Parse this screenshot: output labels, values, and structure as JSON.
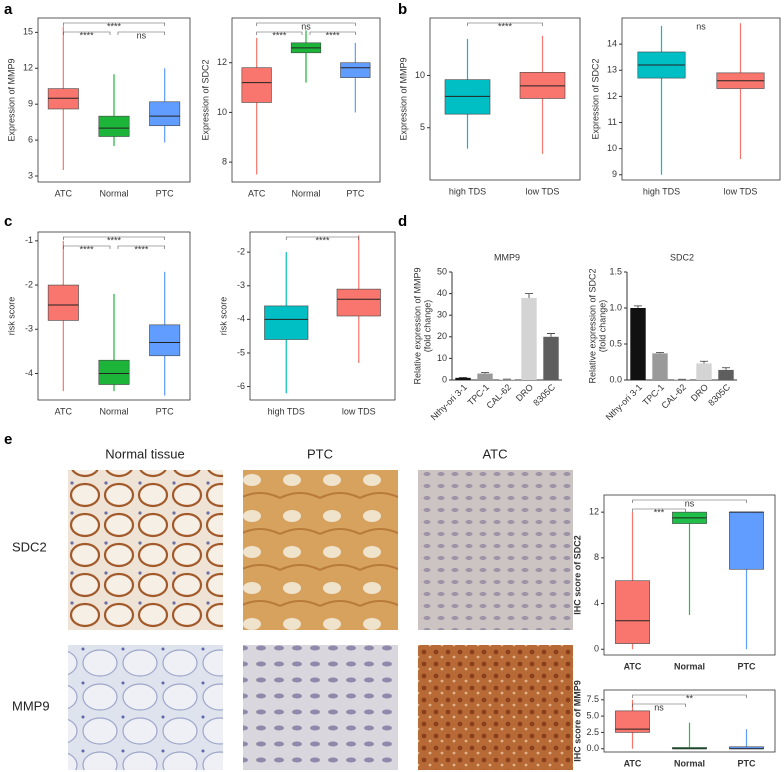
{
  "panel_labels": [
    "a",
    "b",
    "c",
    "d",
    "e"
  ],
  "ihc": {
    "columns": [
      "Normal tissue",
      "PTC",
      "ATC"
    ],
    "rows": [
      "SDC2",
      "MMP9"
    ]
  },
  "chart_data": [
    {
      "type": "box",
      "ylabel": "Expression of MMP9",
      "categories": [
        "ATC",
        "Normal",
        "PTC"
      ],
      "colors": [
        "#f8766d",
        "#1db43a",
        "#619cff"
      ],
      "ylim": [
        2.5,
        16.2
      ],
      "yticks": [
        3,
        6,
        9,
        12,
        15
      ],
      "boxes": [
        {
          "whisker_low": 3.5,
          "q1": 8.6,
          "median": 9.5,
          "q3": 10.3,
          "whisker_high": 15.5
        },
        {
          "whisker_low": 5.5,
          "q1": 6.3,
          "median": 7.0,
          "q3": 8.0,
          "whisker_high": 11.5
        },
        {
          "whisker_low": 5.8,
          "q1": 7.2,
          "median": 8.0,
          "q3": 9.2,
          "whisker_high": 12.0
        }
      ],
      "significance": [
        "****",
        "****",
        "ns"
      ]
    },
    {
      "type": "box",
      "ylabel": "Expression of SDC2",
      "categories": [
        "ATC",
        "Normal",
        "PTC"
      ],
      "colors": [
        "#f8766d",
        "#1db43a",
        "#619cff"
      ],
      "ylim": [
        7.2,
        13.8
      ],
      "yticks": [
        8,
        10,
        12
      ],
      "boxes": [
        {
          "whisker_low": 7.5,
          "q1": 10.4,
          "median": 11.2,
          "q3": 11.8,
          "whisker_high": 13.0
        },
        {
          "whisker_low": 11.2,
          "q1": 12.4,
          "median": 12.6,
          "q3": 12.8,
          "whisker_high": 13.3
        },
        {
          "whisker_low": 10.0,
          "q1": 11.4,
          "median": 11.8,
          "q3": 12.0,
          "whisker_high": 12.8
        }
      ],
      "significance": [
        "ns",
        "****",
        "****"
      ]
    },
    {
      "type": "box",
      "ylabel": "Expression of MMP9",
      "categories": [
        "high TDS",
        "low TDS"
      ],
      "colors": [
        "#00bfc4",
        "#f8766d"
      ],
      "ylim": [
        0,
        15.5
      ],
      "yticks": [
        5,
        10
      ],
      "boxes": [
        {
          "whisker_low": 3.0,
          "q1": 6.3,
          "median": 8.0,
          "q3": 9.6,
          "whisker_high": 13.5
        },
        {
          "whisker_low": 2.5,
          "q1": 7.8,
          "median": 9.0,
          "q3": 10.3,
          "whisker_high": 13.8
        }
      ],
      "significance": [
        "****"
      ]
    },
    {
      "type": "box",
      "ylabel": "Expression of SDC2",
      "categories": [
        "high TDS",
        "low TDS"
      ],
      "colors": [
        "#00bfc4",
        "#f8766d"
      ],
      "ylim": [
        8.8,
        15.0
      ],
      "yticks": [
        9,
        10,
        11,
        12,
        13,
        14
      ],
      "boxes": [
        {
          "whisker_low": 9.0,
          "q1": 12.7,
          "median": 13.2,
          "q3": 13.7,
          "whisker_high": 14.7
        },
        {
          "whisker_low": 9.6,
          "q1": 12.3,
          "median": 12.6,
          "q3": 12.9,
          "whisker_high": 14.8
        }
      ],
      "significance": [
        "ns"
      ]
    },
    {
      "type": "box",
      "ylabel": "risk score",
      "categories": [
        "ATC",
        "Normal",
        "PTC"
      ],
      "colors": [
        "#f8766d",
        "#1db43a",
        "#619cff"
      ],
      "ylim": [
        -4.6,
        -0.8
      ],
      "yticks": [
        -4,
        -3,
        -2,
        -1
      ],
      "boxes": [
        {
          "whisker_low": -4.4,
          "q1": -2.8,
          "median": -2.45,
          "q3": -2.0,
          "whisker_high": -1.0
        },
        {
          "whisker_low": -4.4,
          "q1": -4.25,
          "median": -4.0,
          "q3": -3.7,
          "whisker_high": -2.2
        },
        {
          "whisker_low": -4.5,
          "q1": -3.6,
          "median": -3.3,
          "q3": -2.9,
          "whisker_high": -1.7
        }
      ],
      "significance": [
        "****",
        "****",
        "****"
      ]
    },
    {
      "type": "box",
      "ylabel": "risk score",
      "categories": [
        "high TDS",
        "low TDS"
      ],
      "colors": [
        "#00bfc4",
        "#f8766d"
      ],
      "ylim": [
        -6.4,
        -1.4
      ],
      "yticks": [
        -6,
        -5,
        -4,
        -3,
        -2
      ],
      "boxes": [
        {
          "whisker_low": -6.2,
          "q1": -4.6,
          "median": -4.0,
          "q3": -3.6,
          "whisker_high": -2.0
        },
        {
          "whisker_low": -5.3,
          "q1": -3.9,
          "median": -3.4,
          "q3": -3.1,
          "whisker_high": -1.5
        }
      ],
      "significance": [
        "****"
      ]
    },
    {
      "type": "bar",
      "title": "MMP9",
      "ylabel": [
        "Relative expression of MMP9",
        "(fold change)"
      ],
      "categories": [
        "Nthy-ori 3-1",
        "TPC-1",
        "CAL-62",
        "DRO",
        "8305C"
      ],
      "colors": [
        "#111111",
        "#9a9a9a",
        "#cfcfcf",
        "#d4d4d4",
        "#5e5e5e"
      ],
      "values": [
        1.0,
        3.0,
        0.3,
        38.0,
        20.0
      ],
      "errors": [
        0.2,
        0.4,
        0.1,
        2.0,
        1.5
      ],
      "ylim": [
        0,
        50
      ],
      "yticks": [
        0,
        10,
        20,
        30,
        40,
        50
      ]
    },
    {
      "type": "bar",
      "title": "SDC2",
      "ylabel": [
        "Relative expression of SDC2",
        "(fold change)"
      ],
      "categories": [
        "Nthy-ori 3-1",
        "TPC-1",
        "CAL-62",
        "DRO",
        "8305C"
      ],
      "colors": [
        "#111111",
        "#9a9a9a",
        "#cfcfcf",
        "#d4d4d4",
        "#5e5e5e"
      ],
      "values": [
        1.0,
        0.37,
        0.01,
        0.23,
        0.14
      ],
      "errors": [
        0.03,
        0.01,
        0.0,
        0.03,
        0.03
      ],
      "ylim": [
        0,
        1.5
      ],
      "yticks": [
        {
          "value": 0,
          "label": "0.0"
        },
        {
          "value": 0.5,
          "label": "0.5"
        },
        {
          "value": 1,
          "label": "1.0"
        },
        {
          "value": 1.5,
          "label": "1.5"
        }
      ]
    },
    {
      "type": "box",
      "ylabel": "IHC score of SDC2",
      "categories": [
        "ATC",
        "Normal",
        "PTC"
      ],
      "colors": [
        "#f8766d",
        "#1fbf4a",
        "#619cff"
      ],
      "ylim": [
        -0.5,
        13.5
      ],
      "yticks": [
        0,
        4,
        8,
        12
      ],
      "boxes": [
        {
          "whisker_low": 0,
          "q1": 0.5,
          "median": 2.5,
          "q3": 6,
          "whisker_high": 12
        },
        {
          "whisker_low": 3,
          "q1": 11,
          "median": 11.5,
          "q3": 12,
          "whisker_high": 12
        },
        {
          "whisker_low": 0,
          "q1": 7,
          "median": 12,
          "q3": 12,
          "whisker_high": 12
        }
      ],
      "significance": [
        "ns",
        "***"
      ]
    },
    {
      "type": "box",
      "ylabel": "IHC score of MMP9",
      "categories": [
        "ATC",
        "Normal",
        "PTC"
      ],
      "colors": [
        "#f8766d",
        "#1fbf4a",
        "#619cff"
      ],
      "ylim": [
        -0.5,
        9.0
      ],
      "yticks": [
        {
          "value": 0,
          "label": "0.0"
        },
        {
          "value": 2.5,
          "label": "2.5"
        },
        {
          "value": 5,
          "label": "5.0"
        },
        {
          "value": 7.5,
          "label": "7.5"
        }
      ],
      "boxes": [
        {
          "whisker_low": 0,
          "q1": 2.5,
          "median": 3.0,
          "q3": 5.8,
          "whisker_high": 7.5
        },
        {
          "whisker_low": 0,
          "q1": 0,
          "median": 0,
          "q3": 0.2,
          "whisker_high": 4
        },
        {
          "whisker_low": 0,
          "q1": 0,
          "median": 0,
          "q3": 0.3,
          "whisker_high": 3
        }
      ],
      "significance": [
        "**",
        "ns"
      ]
    }
  ]
}
